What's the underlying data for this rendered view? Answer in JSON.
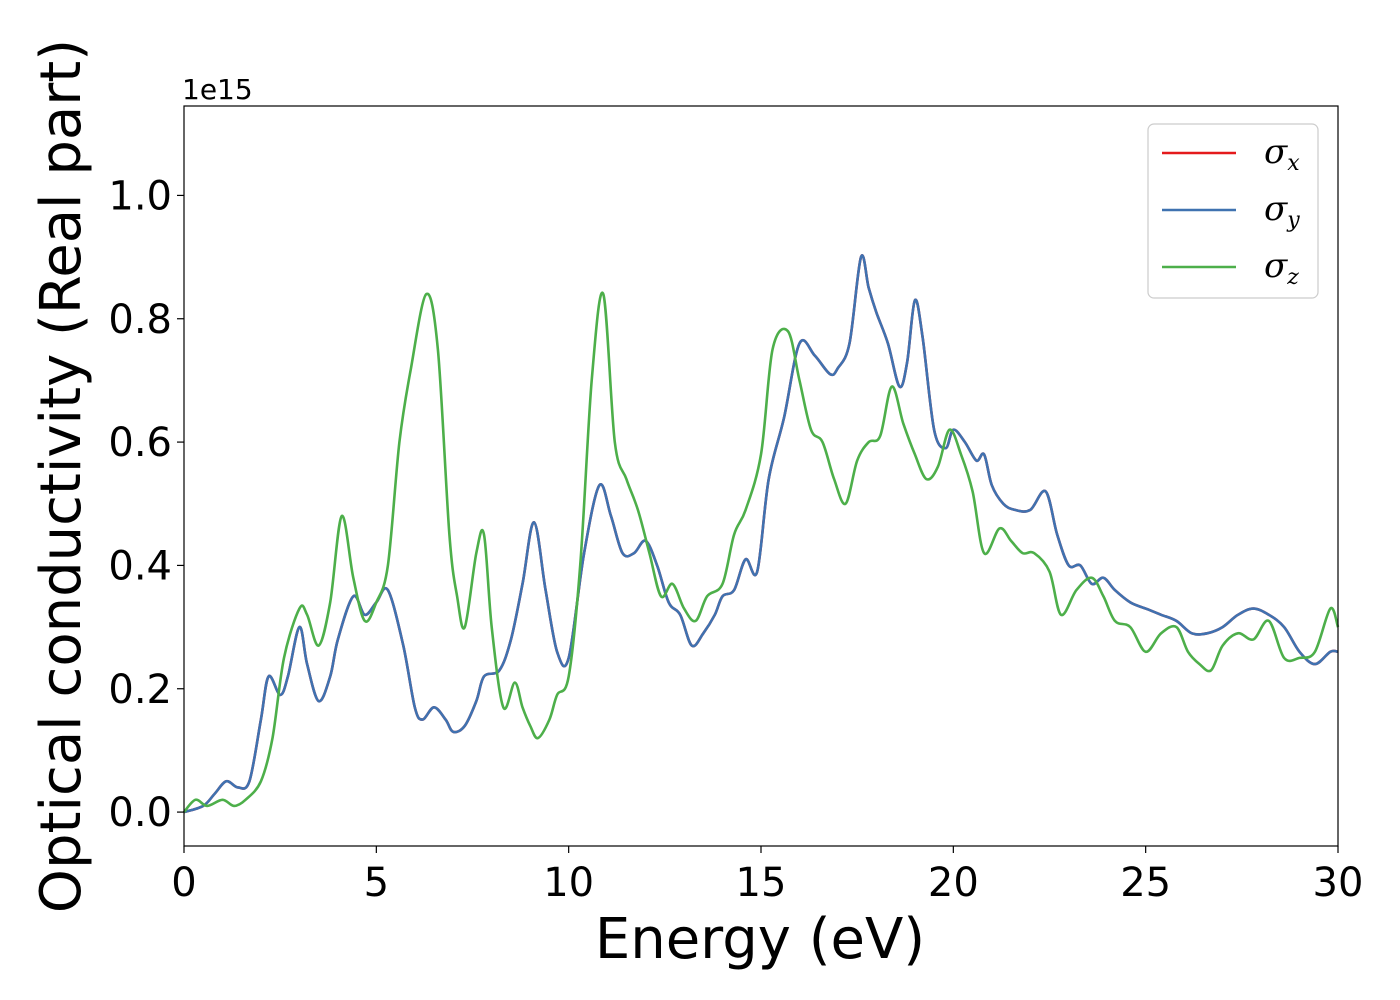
{
  "chart_data": {
    "type": "line",
    "xlabel": "Energy (eV)",
    "ylabel": "Optical conductivity (Real part)",
    "y_offset_text": "1e15",
    "xlim": [
      0,
      30
    ],
    "ylim": [
      -0.055,
      1.145
    ],
    "xticks": [
      0,
      5,
      10,
      15,
      20,
      25,
      30
    ],
    "xtick_labels": [
      "0",
      "5",
      "10",
      "15",
      "20",
      "25",
      "30"
    ],
    "yticks": [
      0.0,
      0.2,
      0.4,
      0.6,
      0.8,
      1.0
    ],
    "ytick_labels": [
      "0.0",
      "0.2",
      "0.4",
      "0.6",
      "0.8",
      "1.0"
    ],
    "grid": false,
    "legend_position": "top-right",
    "series": [
      {
        "name": "σx",
        "symbol": "σ",
        "subscript": "x",
        "color": "#e41a1c",
        "x": [
          0,
          0.5,
          0.8,
          1.1,
          1.4,
          1.7,
          2.0,
          2.2,
          2.5,
          2.7,
          3.0,
          3.2,
          3.5,
          3.8,
          4.0,
          4.4,
          4.7,
          5.0,
          5.3,
          5.7,
          6.0,
          6.2,
          6.5,
          6.8,
          7.0,
          7.3,
          7.6,
          7.8,
          8.2,
          8.5,
          8.8,
          9.1,
          9.4,
          9.7,
          10.0,
          10.4,
          10.8,
          11.1,
          11.4,
          11.7,
          12.0,
          12.3,
          12.6,
          12.9,
          13.2,
          13.5,
          13.8,
          14.0,
          14.3,
          14.6,
          14.9,
          15.2,
          15.6,
          16.0,
          16.4,
          16.8,
          17.0,
          17.3,
          17.6,
          17.8,
          18.0,
          18.3,
          18.6,
          18.8,
          19.0,
          19.2,
          19.5,
          19.8,
          20.0,
          20.3,
          20.6,
          20.8,
          21.0,
          21.3,
          21.6,
          22.0,
          22.4,
          22.7,
          23.0,
          23.3,
          23.6,
          23.9,
          24.2,
          24.6,
          25.0,
          25.4,
          25.8,
          26.2,
          26.6,
          27.0,
          27.4,
          27.8,
          28.2,
          28.6,
          29.0,
          29.4,
          29.8,
          30.0
        ],
        "y": [
          0.0,
          0.01,
          0.03,
          0.05,
          0.04,
          0.05,
          0.15,
          0.22,
          0.19,
          0.22,
          0.3,
          0.24,
          0.18,
          0.22,
          0.28,
          0.35,
          0.32,
          0.34,
          0.36,
          0.27,
          0.17,
          0.15,
          0.17,
          0.15,
          0.13,
          0.14,
          0.18,
          0.22,
          0.23,
          0.28,
          0.37,
          0.47,
          0.36,
          0.26,
          0.25,
          0.42,
          0.53,
          0.48,
          0.42,
          0.42,
          0.44,
          0.4,
          0.34,
          0.32,
          0.27,
          0.29,
          0.32,
          0.35,
          0.36,
          0.41,
          0.39,
          0.54,
          0.64,
          0.76,
          0.74,
          0.71,
          0.72,
          0.76,
          0.9,
          0.85,
          0.81,
          0.76,
          0.69,
          0.73,
          0.83,
          0.77,
          0.62,
          0.59,
          0.62,
          0.6,
          0.57,
          0.58,
          0.53,
          0.5,
          0.49,
          0.49,
          0.52,
          0.45,
          0.4,
          0.4,
          0.37,
          0.38,
          0.36,
          0.34,
          0.33,
          0.32,
          0.31,
          0.29,
          0.29,
          0.3,
          0.32,
          0.33,
          0.32,
          0.3,
          0.26,
          0.24,
          0.26,
          0.26
        ]
      },
      {
        "name": "σy",
        "symbol": "σ",
        "subscript": "y",
        "color": "#3f72b0",
        "x": [
          0,
          0.5,
          0.8,
          1.1,
          1.4,
          1.7,
          2.0,
          2.2,
          2.5,
          2.7,
          3.0,
          3.2,
          3.5,
          3.8,
          4.0,
          4.4,
          4.7,
          5.0,
          5.3,
          5.7,
          6.0,
          6.2,
          6.5,
          6.8,
          7.0,
          7.3,
          7.6,
          7.8,
          8.2,
          8.5,
          8.8,
          9.1,
          9.4,
          9.7,
          10.0,
          10.4,
          10.8,
          11.1,
          11.4,
          11.7,
          12.0,
          12.3,
          12.6,
          12.9,
          13.2,
          13.5,
          13.8,
          14.0,
          14.3,
          14.6,
          14.9,
          15.2,
          15.6,
          16.0,
          16.4,
          16.8,
          17.0,
          17.3,
          17.6,
          17.8,
          18.0,
          18.3,
          18.6,
          18.8,
          19.0,
          19.2,
          19.5,
          19.8,
          20.0,
          20.3,
          20.6,
          20.8,
          21.0,
          21.3,
          21.6,
          22.0,
          22.4,
          22.7,
          23.0,
          23.3,
          23.6,
          23.9,
          24.2,
          24.6,
          25.0,
          25.4,
          25.8,
          26.2,
          26.6,
          27.0,
          27.4,
          27.8,
          28.2,
          28.6,
          29.0,
          29.4,
          29.8,
          30.0
        ],
        "y": [
          0.0,
          0.01,
          0.03,
          0.05,
          0.04,
          0.05,
          0.15,
          0.22,
          0.19,
          0.22,
          0.3,
          0.24,
          0.18,
          0.22,
          0.28,
          0.35,
          0.32,
          0.34,
          0.36,
          0.27,
          0.17,
          0.15,
          0.17,
          0.15,
          0.13,
          0.14,
          0.18,
          0.22,
          0.23,
          0.28,
          0.37,
          0.47,
          0.36,
          0.26,
          0.25,
          0.42,
          0.53,
          0.48,
          0.42,
          0.42,
          0.44,
          0.4,
          0.34,
          0.32,
          0.27,
          0.29,
          0.32,
          0.35,
          0.36,
          0.41,
          0.39,
          0.54,
          0.64,
          0.76,
          0.74,
          0.71,
          0.72,
          0.76,
          0.9,
          0.85,
          0.81,
          0.76,
          0.69,
          0.73,
          0.83,
          0.77,
          0.62,
          0.59,
          0.62,
          0.6,
          0.57,
          0.58,
          0.53,
          0.5,
          0.49,
          0.49,
          0.52,
          0.45,
          0.4,
          0.4,
          0.37,
          0.38,
          0.36,
          0.34,
          0.33,
          0.32,
          0.31,
          0.29,
          0.29,
          0.3,
          0.32,
          0.33,
          0.32,
          0.3,
          0.26,
          0.24,
          0.26,
          0.26
        ]
      },
      {
        "name": "σz",
        "symbol": "σ",
        "subscript": "z",
        "color": "#4daf4a",
        "x": [
          0,
          0.3,
          0.6,
          1.0,
          1.3,
          1.6,
          2.0,
          2.3,
          2.6,
          3.0,
          3.2,
          3.5,
          3.8,
          4.1,
          4.4,
          4.7,
          5.0,
          5.3,
          5.6,
          5.9,
          6.3,
          6.6,
          6.9,
          7.1,
          7.3,
          7.6,
          7.8,
          8.0,
          8.3,
          8.6,
          8.8,
          9.0,
          9.2,
          9.5,
          9.7,
          10.0,
          10.3,
          10.6,
          10.9,
          11.2,
          11.5,
          11.8,
          12.1,
          12.4,
          12.7,
          13.0,
          13.3,
          13.6,
          14.0,
          14.3,
          14.6,
          15.0,
          15.3,
          15.7,
          16.0,
          16.3,
          16.6,
          16.9,
          17.2,
          17.5,
          17.8,
          18.1,
          18.4,
          18.7,
          19.0,
          19.3,
          19.6,
          19.9,
          20.2,
          20.5,
          20.8,
          21.2,
          21.5,
          21.8,
          22.1,
          22.5,
          22.8,
          23.2,
          23.6,
          23.9,
          24.2,
          24.6,
          25.0,
          25.4,
          25.8,
          26.1,
          26.4,
          26.7,
          27.0,
          27.4,
          27.8,
          28.2,
          28.6,
          29.0,
          29.4,
          29.8,
          30.0
        ],
        "y": [
          0.0,
          0.02,
          0.01,
          0.02,
          0.01,
          0.02,
          0.05,
          0.12,
          0.25,
          0.33,
          0.32,
          0.27,
          0.34,
          0.48,
          0.38,
          0.31,
          0.34,
          0.4,
          0.6,
          0.72,
          0.84,
          0.75,
          0.45,
          0.35,
          0.3,
          0.42,
          0.45,
          0.3,
          0.17,
          0.21,
          0.17,
          0.14,
          0.12,
          0.15,
          0.19,
          0.22,
          0.4,
          0.7,
          0.84,
          0.6,
          0.54,
          0.49,
          0.42,
          0.35,
          0.37,
          0.33,
          0.31,
          0.35,
          0.37,
          0.45,
          0.49,
          0.58,
          0.75,
          0.78,
          0.7,
          0.62,
          0.6,
          0.54,
          0.5,
          0.57,
          0.6,
          0.61,
          0.69,
          0.63,
          0.58,
          0.54,
          0.56,
          0.62,
          0.58,
          0.52,
          0.42,
          0.46,
          0.44,
          0.42,
          0.42,
          0.39,
          0.32,
          0.36,
          0.38,
          0.35,
          0.31,
          0.3,
          0.26,
          0.29,
          0.3,
          0.26,
          0.24,
          0.23,
          0.27,
          0.29,
          0.28,
          0.31,
          0.25,
          0.25,
          0.26,
          0.33,
          0.3
        ]
      }
    ]
  }
}
